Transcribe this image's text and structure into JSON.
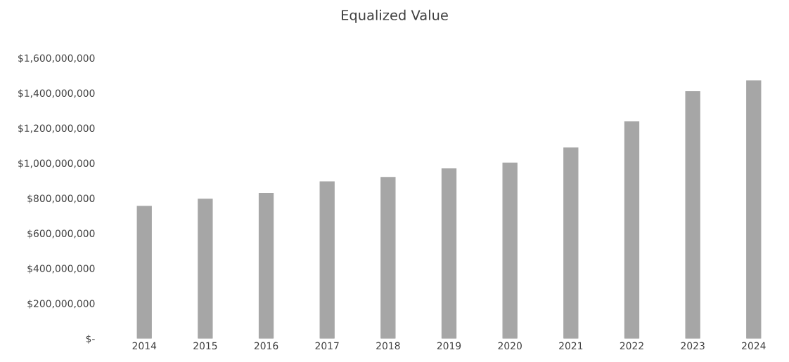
{
  "chart_data": {
    "type": "bar",
    "title": "Equalized Value",
    "categories": [
      "2014",
      "2015",
      "2016",
      "2017",
      "2018",
      "2019",
      "2020",
      "2021",
      "2022",
      "2023",
      "2024"
    ],
    "values": [
      753000000,
      794000000,
      827000000,
      893000000,
      918000000,
      967000000,
      1000000000,
      1086000000,
      1235000000,
      1407000000,
      1469000000
    ],
    "color": "#a6a6a6",
    "ylim": [
      0,
      1600000000
    ],
    "yticks": [
      {
        "value": 0,
        "label": "$-"
      },
      {
        "value": 200000000,
        "label": "$200,000,000"
      },
      {
        "value": 400000000,
        "label": "$400,000,000"
      },
      {
        "value": 600000000,
        "label": "$600,000,000"
      },
      {
        "value": 800000000,
        "label": "$800,000,000"
      },
      {
        "value": 1000000000,
        "label": "$1,000,000,000"
      },
      {
        "value": 1200000000,
        "label": "$1,200,000,000"
      },
      {
        "value": 1400000000,
        "label": "$1,400,000,000"
      },
      {
        "value": 1600000000,
        "label": "$1,600,000,000"
      }
    ],
    "grid": false,
    "legend": false
  }
}
